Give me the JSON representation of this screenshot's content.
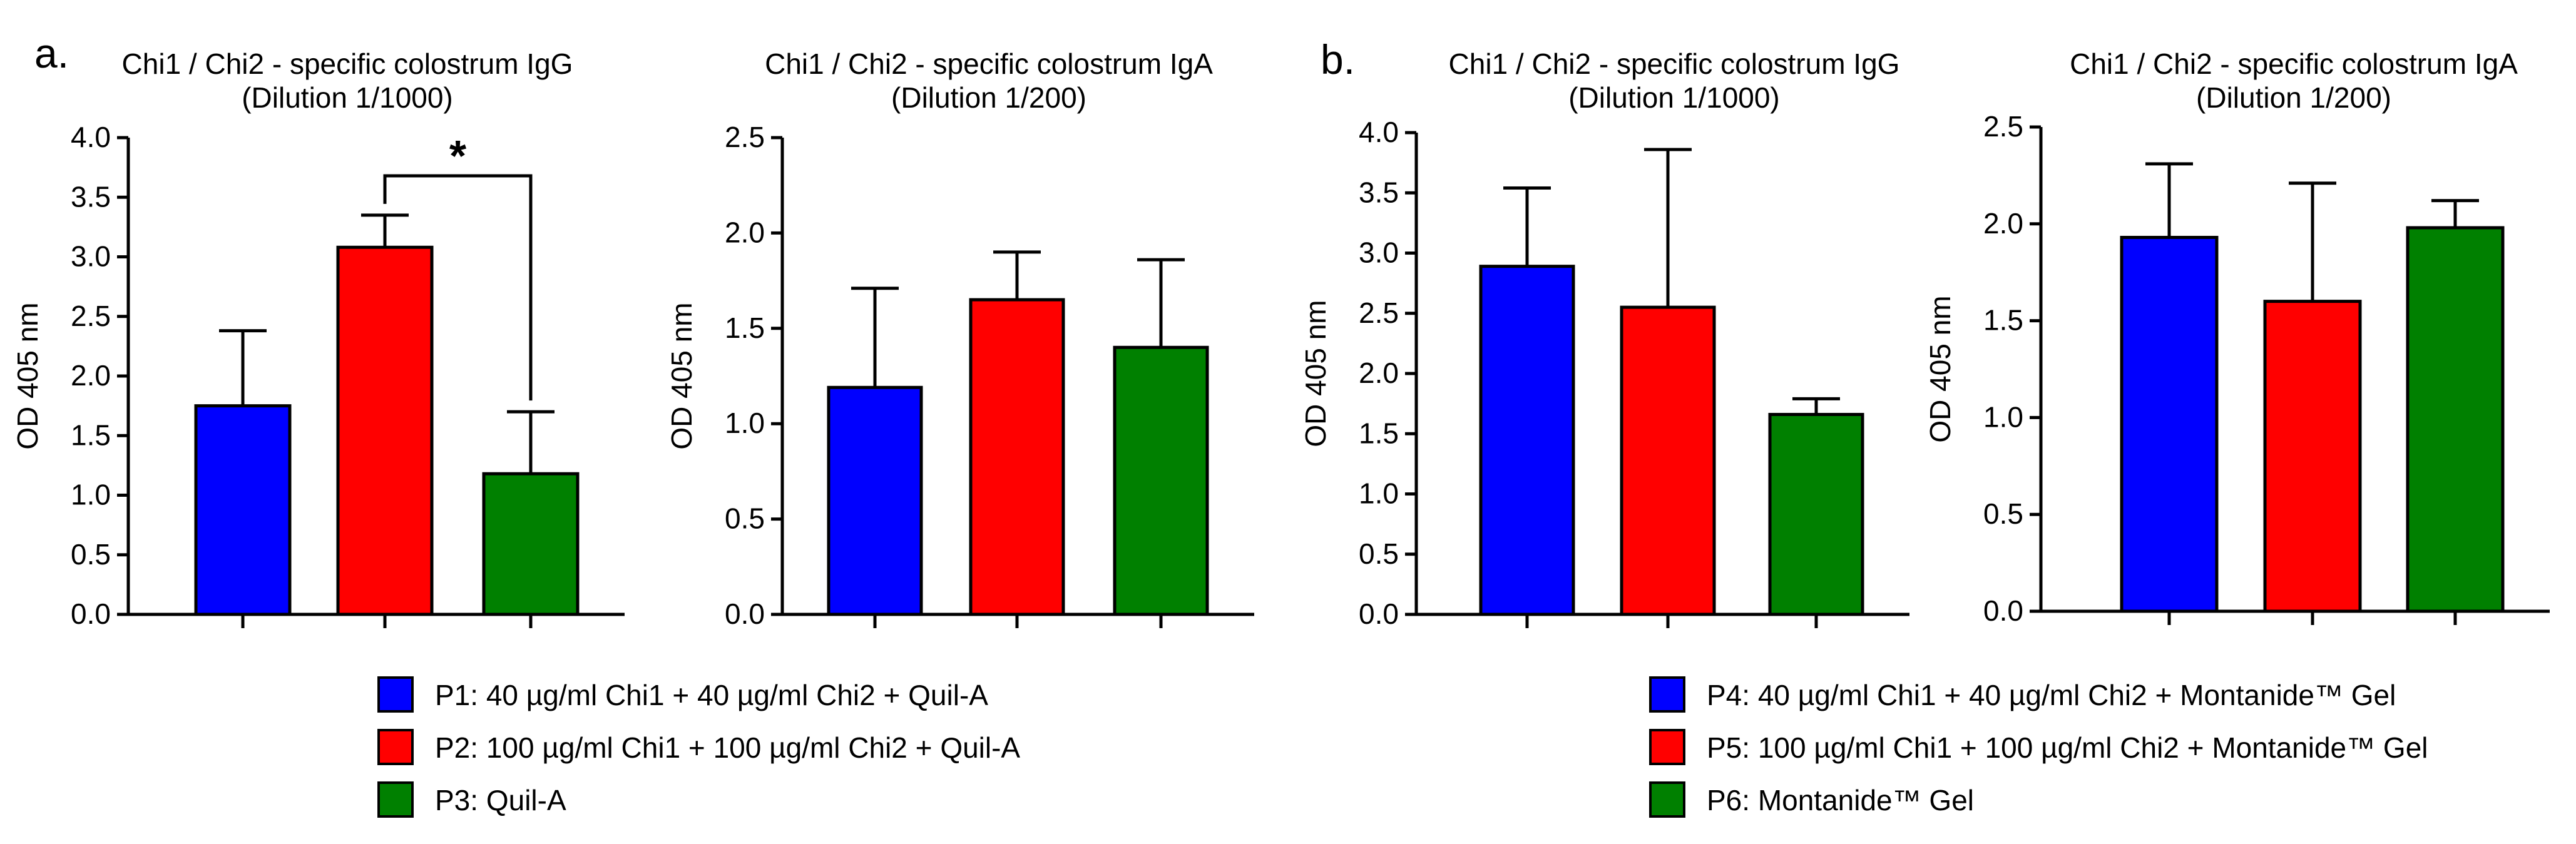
{
  "panel_labels": [
    "a.",
    "b."
  ],
  "y_unit_label": "OD 405 nm",
  "colors": {
    "blue": "#0000ff",
    "red": "#ff0000",
    "green": "#008000"
  },
  "legends": [
    {
      "items": [
        {
          "label": "P1: 40 µg/ml Chi1 + 40 µg/ml Chi2 + Quil-A",
          "color": "#0000ff"
        },
        {
          "label": "P2: 100 µg/ml Chi1 + 100 µg/ml Chi2 + Quil-A",
          "color": "#ff0000"
        },
        {
          "label": "P3: Quil-A",
          "color": "#008000"
        }
      ]
    },
    {
      "items": [
        {
          "label": "P4: 40 µg/ml Chi1 + 40 µg/ml Chi2 + Montanide™ Gel",
          "color": "#0000ff"
        },
        {
          "label": "P5: 100 µg/ml Chi1 + 100 µg/ml Chi2 + Montanide™ Gel",
          "color": "#ff0000"
        },
        {
          "label": "P6: Montanide™ Gel",
          "color": "#008000"
        }
      ]
    }
  ],
  "chart_data": [
    {
      "type": "bar",
      "panel": "a.",
      "title": "Chi1 / Chi2 - specific colostrum IgG",
      "subtitle": "(Dilution 1/1000)",
      "ylabel": "OD 405 nm",
      "ylim": [
        0,
        4.0
      ],
      "yticks": [
        "0.0",
        "0.5",
        "1.0",
        "1.5",
        "2.0",
        "2.5",
        "3.0",
        "3.5",
        "4.0"
      ],
      "series": [
        {
          "name": "P1: 40 µg/ml Chi1 + 40 µg/ml Chi2 + Quil-A",
          "value": 1.75,
          "error": 0.63,
          "color": "#0000ff"
        },
        {
          "name": "P2: 100 µg/ml Chi1 + 100 µg/ml Chi2 + Quil-A",
          "value": 3.08,
          "error": 0.27,
          "color": "#ff0000"
        },
        {
          "name": "P3: Quil-A",
          "value": 1.18,
          "error": 0.52,
          "color": "#008000"
        }
      ],
      "significance": {
        "from": 1,
        "to": 2,
        "label": "*"
      },
      "grid": false
    },
    {
      "type": "bar",
      "panel": "a.",
      "title": "Chi1 / Chi2 - specific colostrum IgA",
      "subtitle": "(Dilution 1/200)",
      "ylabel": "OD 405 nm",
      "ylim": [
        0,
        2.5
      ],
      "yticks": [
        "0.0",
        "0.5",
        "1.0",
        "1.5",
        "2.0",
        "2.5"
      ],
      "series": [
        {
          "name": "P1: 40 µg/ml Chi1 + 40 µg/ml Chi2 + Quil-A",
          "value": 1.19,
          "error": 0.52,
          "color": "#0000ff"
        },
        {
          "name": "P2: 100 µg/ml Chi1 + 100 µg/ml Chi2 + Quil-A",
          "value": 1.65,
          "error": 0.25,
          "color": "#ff0000"
        },
        {
          "name": "P3: Quil-A",
          "value": 1.4,
          "error": 0.46,
          "color": "#008000"
        }
      ],
      "grid": false
    },
    {
      "type": "bar",
      "panel": "b.",
      "title": "Chi1 / Chi2 - specific colostrum IgG",
      "subtitle": "(Dilution 1/1000)",
      "ylabel": "OD 405 nm",
      "ylim": [
        0,
        4.0
      ],
      "yticks": [
        "0.0",
        "0.5",
        "1.0",
        "1.5",
        "2.0",
        "2.5",
        "3.0",
        "3.5",
        "4.0"
      ],
      "series": [
        {
          "name": "P4: 40 µg/ml Chi1 + 40 µg/ml Chi2 + Montanide™ Gel",
          "value": 2.89,
          "error": 0.65,
          "color": "#0000ff"
        },
        {
          "name": "P5: 100 µg/ml Chi1 + 100 µg/ml Chi2 + Montanide™ Gel",
          "value": 2.55,
          "error": 1.31,
          "color": "#ff0000"
        },
        {
          "name": "P6: Montanide™ Gel",
          "value": 1.66,
          "error": 0.13,
          "color": "#008000"
        }
      ],
      "grid": false
    },
    {
      "type": "bar",
      "panel": "b.",
      "title": "Chi1 / Chi2 - specific colostrum IgA",
      "subtitle": "(Dilution 1/200)",
      "ylabel": "OD 405 nm",
      "ylim": [
        0,
        2.5
      ],
      "yticks": [
        "0.0",
        "0.5",
        "1.0",
        "1.5",
        "2.0",
        "2.5"
      ],
      "series": [
        {
          "name": "P4: 40 µg/ml Chi1 + 40 µg/ml Chi2 + Montanide™ Gel",
          "value": 1.93,
          "error": 0.38,
          "color": "#0000ff"
        },
        {
          "name": "P5: 100 µg/ml Chi1 + 100 µg/ml Chi2 + Montanide™ Gel",
          "value": 1.6,
          "error": 0.61,
          "color": "#ff0000"
        },
        {
          "name": "P6: Montanide™ Gel",
          "value": 1.98,
          "error": 0.14,
          "color": "#008000"
        }
      ],
      "grid": false
    }
  ]
}
